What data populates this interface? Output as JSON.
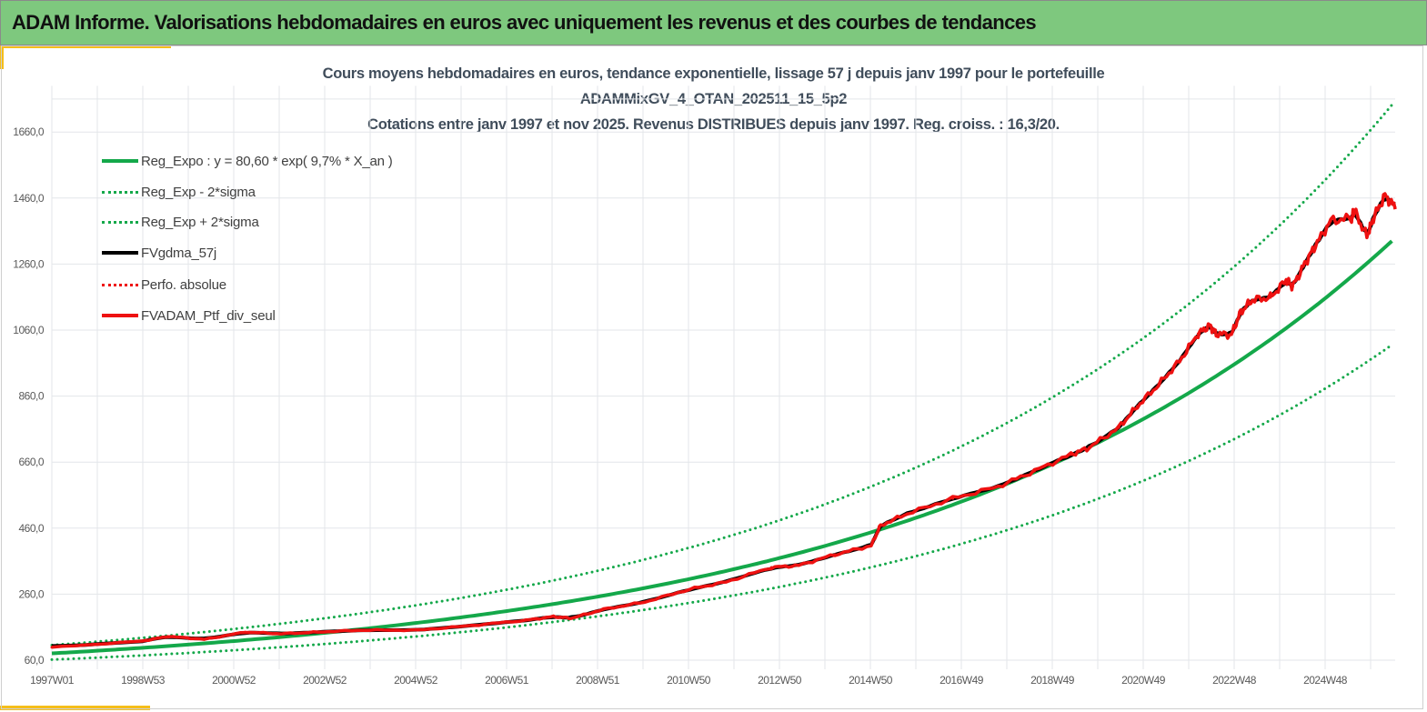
{
  "header": {
    "title": "ADAM Informe. Valorisations hebdomadaires en euros avec uniquement les revenus et des courbes de tendances"
  },
  "colors": {
    "header_bg": "#7ec87e",
    "accent": "#f5be1a",
    "trend": "#14a84a",
    "smoothed": "#000000",
    "portfolio": "#ee1111"
  },
  "chart_data": {
    "type": "line",
    "title_lines": [
      "Cours moyens hebdomadaires  en euros, tendance exponentielle, lissage 57 j depuis janv 1997 pour le portefeuille",
      "ADAMMixGV_4_OTAN_202511_15_5p2",
      "Cotations  entre janv 1997 et nov 2025. Revenus DISTRIBUES depuis janv 1997. Reg. croiss. : 16,3/20."
    ],
    "xlabel": "",
    "ylabel": "",
    "x_tick_labels": [
      "1997W01",
      "1998W53",
      "2000W52",
      "2002W52",
      "2004W52",
      "2006W51",
      "2008W51",
      "2010W50",
      "2012W50",
      "2014W50",
      "2016W49",
      "2018W49",
      "2020W49",
      "2022W48",
      "2024W48"
    ],
    "xlim": [
      1997.0,
      2025.97
    ],
    "y_ticks": [
      "60,0",
      "260,0",
      "460,0",
      "660,0",
      "860,0",
      "1060,0",
      "1260,0",
      "1460,0",
      "1660,0"
    ],
    "y_tick_values": [
      60,
      260,
      460,
      660,
      860,
      1060,
      1260,
      1460,
      1660
    ],
    "ylim": [
      60,
      1800
    ],
    "grid": true,
    "legend_position": "top-left",
    "legend": [
      {
        "label": "Reg_Expo : y = 80,60 * exp( 9,7% *  X_an )",
        "style": "solid",
        "color": "#14a84a"
      },
      {
        "label": "Reg_Exp - 2*sigma",
        "style": "dotted",
        "color": "#14a84a"
      },
      {
        "label": "Reg_Exp + 2*sigma",
        "style": "dotted",
        "color": "#14a84a"
      },
      {
        "label": "FVgdma_57j",
        "style": "solid",
        "color": "#000000"
      },
      {
        "label": "Perfo. absolue",
        "style": "dotted",
        "color": "#ee1111"
      },
      {
        "label": "FVADAM_Ptf_div_seul",
        "style": "solid",
        "color": "#ee1111"
      }
    ],
    "regression": {
      "a": 80.6,
      "rate": 0.097,
      "band_log_2sigma": 0.27
    },
    "series": [
      {
        "name": "FVADAM_Ptf_div_seul",
        "x": [
          1997.0,
          1998.96,
          1999.5,
          2000.29,
          2001.17,
          2001.95,
          2002.73,
          2003.71,
          2004.89,
          2006.06,
          2007.23,
          2007.82,
          2008.21,
          2008.9,
          2009.78,
          2010.76,
          2011.54,
          2012.52,
          2013.11,
          2013.89,
          2014.67,
          2014.87,
          2015.45,
          2016.43,
          2017.41,
          2018.19,
          2018.98,
          2019.37,
          2020.01,
          2020.41,
          2020.87,
          2021.32,
          2021.72,
          2021.97,
          2022.11,
          2022.44,
          2022.64,
          2022.89,
          2023.28,
          2023.62,
          2023.76,
          2024.02,
          2024.25,
          2024.58,
          2025.03,
          2025.09,
          2025.36,
          2025.5,
          2025.75,
          2025.97
        ],
        "y": [
          99,
          118,
          132,
          123,
          145,
          140,
          145,
          151,
          151,
          165,
          181,
          192,
          187,
          214,
          236,
          275,
          297,
          341,
          347,
          380,
          407,
          468,
          504,
          550,
          586,
          633,
          683,
          704,
          765,
          829,
          895,
          966,
          1049,
          1074,
          1049,
          1046,
          1115,
          1151,
          1159,
          1211,
          1192,
          1261,
          1316,
          1391,
          1399,
          1421,
          1344,
          1399,
          1468,
          1432
        ]
      }
    ]
  }
}
